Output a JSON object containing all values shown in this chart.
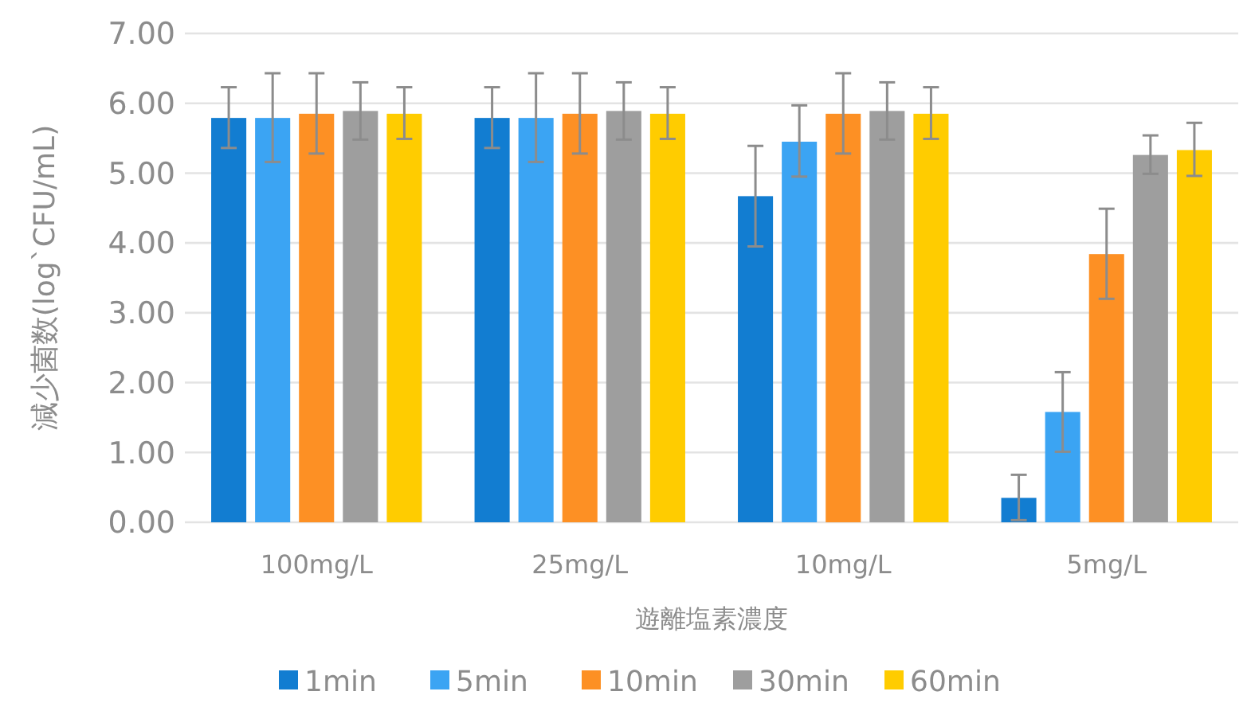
{
  "chart_data": {
    "type": "bar",
    "xlabel": "遊離塩素濃度",
    "ylabel": "減少菌数(log`CFU/mL)",
    "categories": [
      "100mg/L",
      "25mg/L",
      "10mg/L",
      "5mg/L"
    ],
    "series": [
      {
        "name": "1min",
        "color": "#127dd1",
        "values": [
          5.79,
          5.79,
          4.67,
          0.35
        ],
        "errors": [
          [
            5.36,
            6.23
          ],
          [
            5.36,
            6.23
          ],
          [
            3.95,
            5.39
          ],
          [
            0.03,
            0.68
          ]
        ]
      },
      {
        "name": "5min",
        "color": "#3ba4f3",
        "values": [
          5.79,
          5.79,
          5.45,
          1.58
        ],
        "errors": [
          [
            5.16,
            6.43
          ],
          [
            5.16,
            6.43
          ],
          [
            4.95,
            5.97
          ],
          [
            1.01,
            2.15
          ]
        ]
      },
      {
        "name": "10min",
        "color": "#fd9024",
        "values": [
          5.85,
          5.85,
          5.85,
          3.84
        ],
        "errors": [
          [
            5.28,
            6.43
          ],
          [
            5.28,
            6.43
          ],
          [
            5.28,
            6.43
          ],
          [
            3.2,
            4.49
          ]
        ]
      },
      {
        "name": "30min",
        "color": "#9e9e9e",
        "values": [
          5.89,
          5.89,
          5.89,
          5.26
        ],
        "errors": [
          [
            5.48,
            6.3
          ],
          [
            5.48,
            6.3
          ],
          [
            5.48,
            6.3
          ],
          [
            4.99,
            5.54
          ]
        ]
      },
      {
        "name": "60min",
        "color": "#ffcc00",
        "values": [
          5.85,
          5.85,
          5.85,
          5.33
        ],
        "errors": [
          [
            5.49,
            6.23
          ],
          [
            5.49,
            6.23
          ],
          [
            5.49,
            6.23
          ],
          [
            4.96,
            5.72
          ]
        ]
      }
    ],
    "ylim": [
      0,
      7
    ],
    "yticks": [
      {
        "value": 0,
        "label": "0.00"
      },
      {
        "value": 1,
        "label": "1.00"
      },
      {
        "value": 2,
        "label": "2.00"
      },
      {
        "value": 3,
        "label": "3.00"
      },
      {
        "value": 4,
        "label": "4.00"
      },
      {
        "value": 5,
        "label": "5.00"
      },
      {
        "value": 6,
        "label": "6.00"
      },
      {
        "value": 7,
        "label": "7.00"
      }
    ],
    "grid": "y",
    "legend": "bottom"
  }
}
